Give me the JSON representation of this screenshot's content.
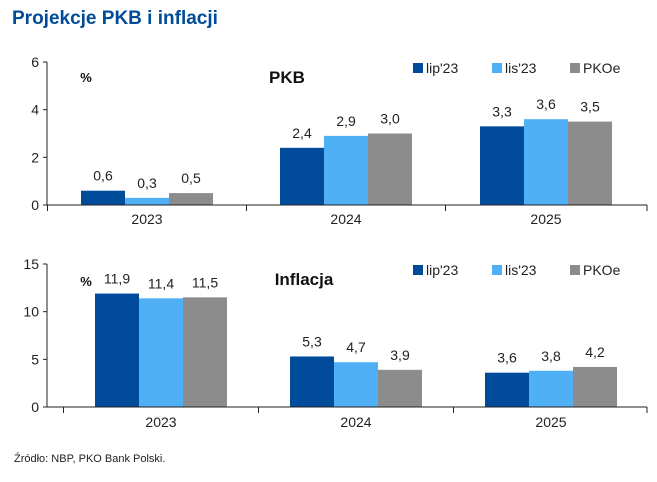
{
  "title": "Projekcje PKB i inflacji",
  "source": "Źródło: NBP, PKO Bank Polski.",
  "colors": {
    "title": "#004c9a",
    "lip23": "#004c9a",
    "lis23": "#4fb0f5",
    "pkoe": "#8c8c8c"
  },
  "chart_data": [
    {
      "type": "bar",
      "title": "PKB",
      "unit": "%",
      "categories": [
        "2023",
        "2024",
        "2025"
      ],
      "ylim": [
        0,
        6
      ],
      "yticks": [
        0,
        2,
        4,
        6
      ],
      "legend": "top-right",
      "series": [
        {
          "name": "lip'23",
          "values": [
            0.6,
            2.4,
            3.3
          ],
          "labels": [
            "0,6",
            "2,4",
            "3,3"
          ]
        },
        {
          "name": "lis'23",
          "values": [
            0.3,
            2.9,
            3.6
          ],
          "labels": [
            "0,3",
            "2,9",
            "3,6"
          ]
        },
        {
          "name": "PKOe",
          "values": [
            0.5,
            3.0,
            3.5
          ],
          "labels": [
            "0,5",
            "3,0",
            "3,5"
          ]
        }
      ]
    },
    {
      "type": "bar",
      "title": "Inflacja",
      "unit": "%",
      "categories": [
        "2023",
        "2024",
        "2025"
      ],
      "ylim": [
        0,
        15
      ],
      "yticks": [
        0,
        5,
        10,
        15
      ],
      "legend": "top-right",
      "series": [
        {
          "name": "lip'23",
          "values": [
            11.9,
            5.3,
            3.6
          ],
          "labels": [
            "11,9",
            "5,3",
            "3,6"
          ]
        },
        {
          "name": "lis'23",
          "values": [
            11.4,
            4.7,
            3.8
          ],
          "labels": [
            "11,4",
            "4,7",
            "3,8"
          ]
        },
        {
          "name": "PKOe",
          "values": [
            11.5,
            3.9,
            4.2
          ],
          "labels": [
            "11,5",
            "3,9",
            "4,2"
          ]
        }
      ]
    }
  ]
}
